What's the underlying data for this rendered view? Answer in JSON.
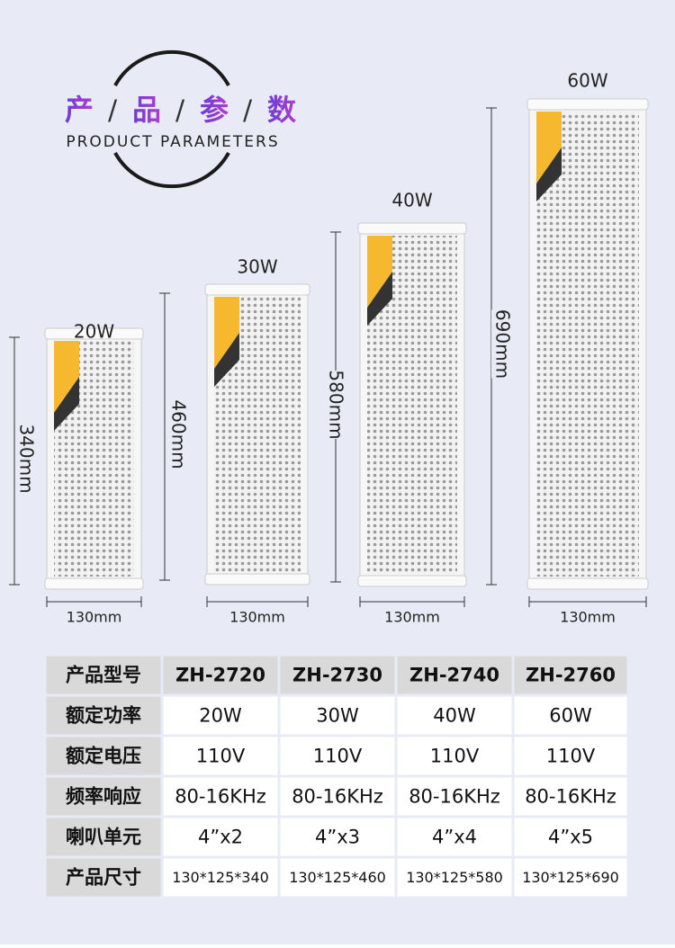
{
  "header": {
    "title": [
      "产",
      "品",
      "参",
      "数"
    ],
    "separator": "/",
    "subtitle": "PRODUCT PARAMETERS"
  },
  "speakers": [
    {
      "power": "20W",
      "height": "340mm",
      "width": "130mm"
    },
    {
      "power": "30W",
      "height": "460mm",
      "width": "130mm"
    },
    {
      "power": "40W",
      "height": "580mm",
      "width": "130mm"
    },
    {
      "power": "60W",
      "height": "690mm",
      "width": "130mm"
    }
  ],
  "table": {
    "rows": [
      [
        "产品型号",
        "ZH-2720",
        "ZH-2730",
        "ZH-2740",
        "ZH-2760"
      ],
      [
        "额定功率",
        "20W",
        "30W",
        "40W",
        "60W"
      ],
      [
        "额定电压",
        "110V",
        "110V",
        "110V",
        "110V"
      ],
      [
        "频率响应",
        "80-16KHz",
        "80-16KHz",
        "80-16KHz",
        "80-16KHz"
      ],
      [
        "喇叭单元",
        "4”x2",
        "4”x3",
        "4”x4",
        "4”x5"
      ],
      [
        "产品尺寸",
        "130*125*340",
        "130*125*460",
        "130*125*580",
        "130*125*690"
      ]
    ]
  }
}
